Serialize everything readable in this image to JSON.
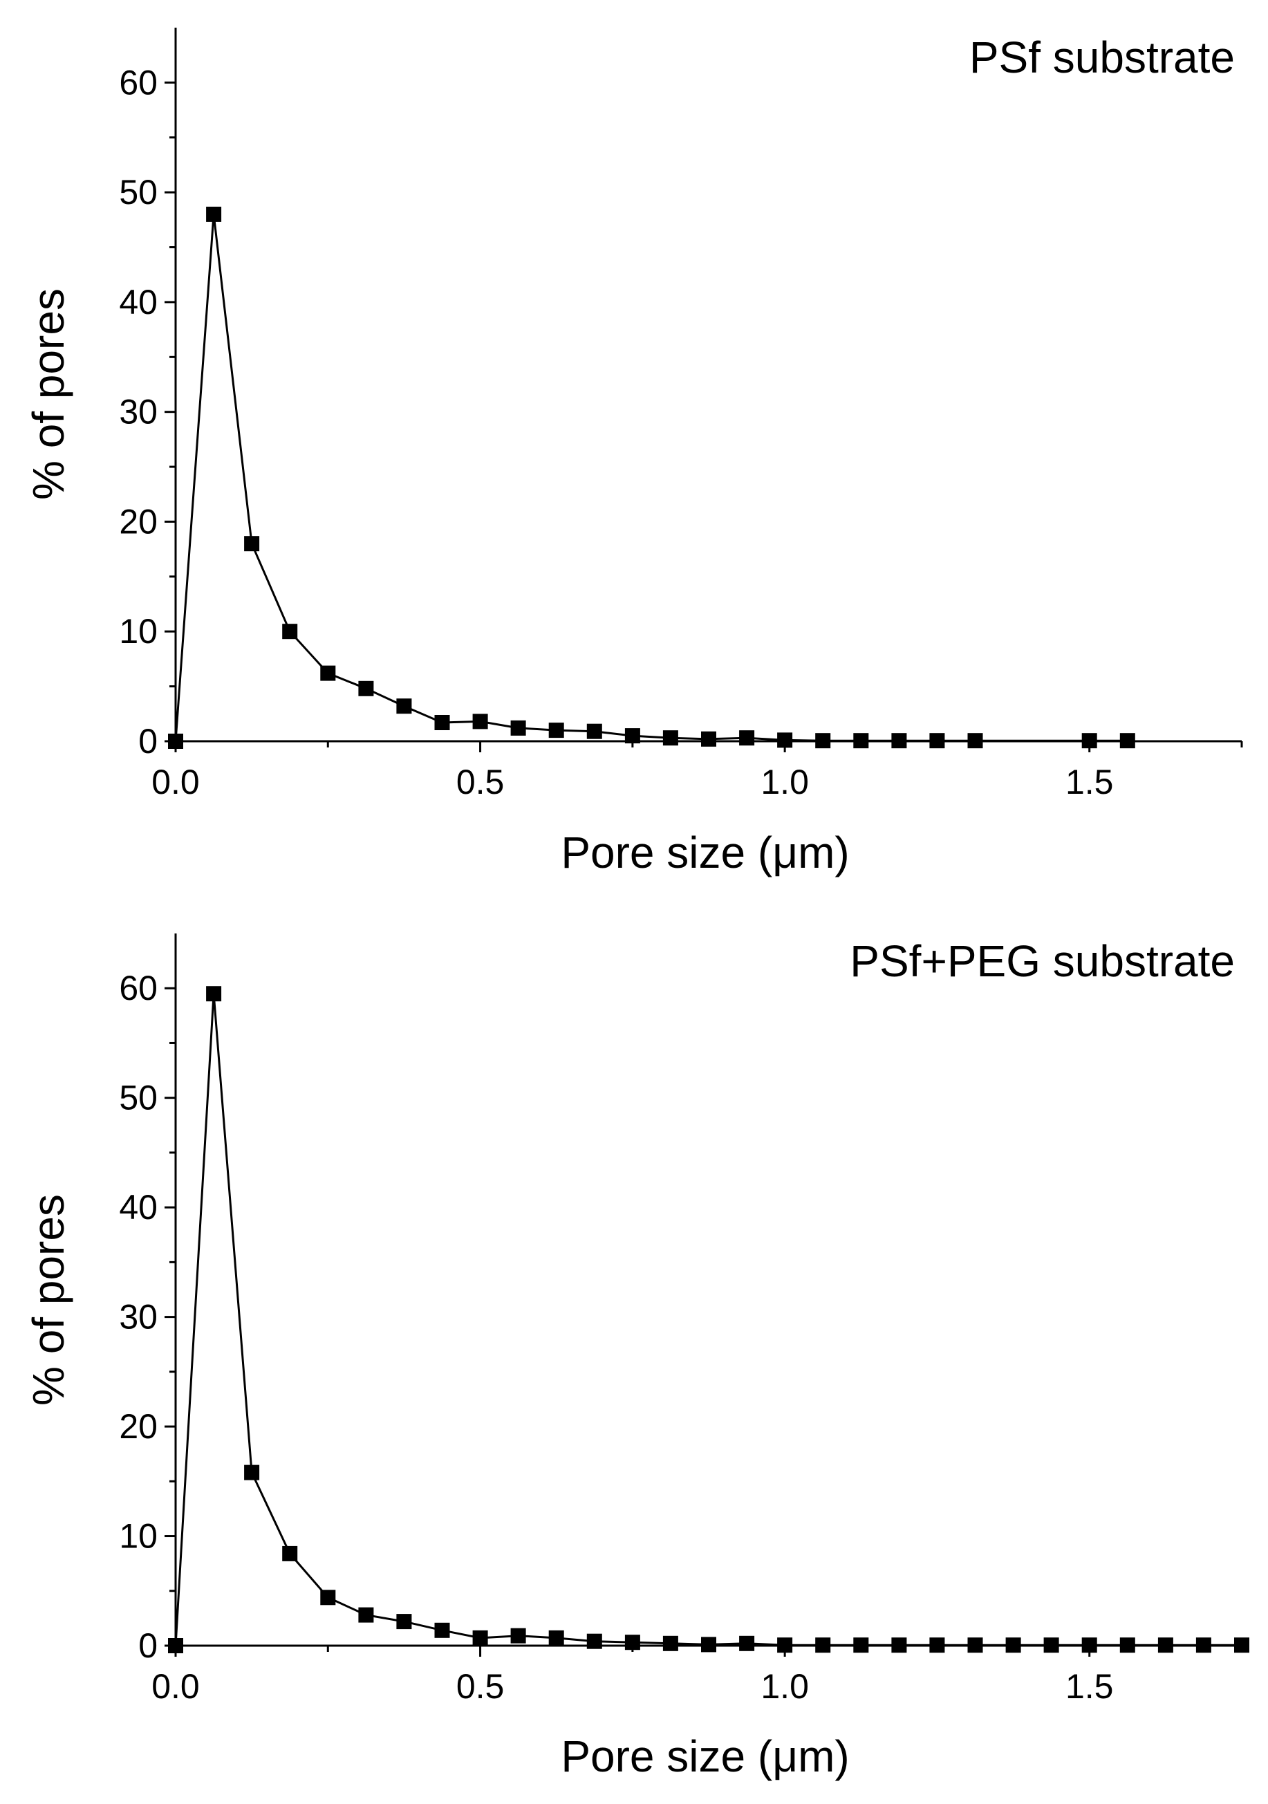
{
  "chart_data": [
    {
      "type": "line",
      "title": "",
      "annotation": "PSf substrate",
      "xlabel": "Pore size (μm)",
      "ylabel": "% of pores",
      "xlim": [
        0,
        1.75
      ],
      "ylim": [
        0,
        65
      ],
      "x_ticks": [
        0.0,
        0.5,
        1.0,
        1.5
      ],
      "x_tick_labels": [
        "0.0",
        "0.5",
        "1.0",
        "1.5"
      ],
      "y_ticks": [
        0,
        10,
        20,
        30,
        40,
        50,
        60
      ],
      "y_tick_labels": [
        "0",
        "10",
        "20",
        "30",
        "40",
        "50",
        "60"
      ],
      "marker": "square",
      "series": [
        {
          "name": "PSf substrate",
          "x": [
            0,
            0.0625,
            0.125,
            0.1875,
            0.25,
            0.3125,
            0.375,
            0.4375,
            0.5,
            0.5625,
            0.625,
            0.6875,
            0.75,
            0.8125,
            0.875,
            0.9375,
            1.0,
            1.0625,
            1.125,
            1.1875,
            1.25,
            1.3125,
            1.5,
            1.5625
          ],
          "values": [
            0,
            48,
            18,
            10,
            6.2,
            4.8,
            3.2,
            1.7,
            1.8,
            1.2,
            1.0,
            0.9,
            0.5,
            0.3,
            0.2,
            0.3,
            0.1,
            0.05,
            0.05,
            0.05,
            0.05,
            0.05,
            0.05,
            0.05
          ]
        }
      ]
    },
    {
      "type": "line",
      "title": "",
      "annotation": "PSf+PEG substrate",
      "xlabel": "Pore size (μm)",
      "ylabel": "% of pores",
      "xlim": [
        0,
        1.75
      ],
      "ylim": [
        0,
        65
      ],
      "x_ticks": [
        0.0,
        0.5,
        1.0,
        1.5
      ],
      "x_tick_labels": [
        "0.0",
        "0.5",
        "1.0",
        "1.5"
      ],
      "y_ticks": [
        0,
        10,
        20,
        30,
        40,
        50,
        60
      ],
      "y_tick_labels": [
        "0",
        "10",
        "20",
        "30",
        "40",
        "50",
        "60"
      ],
      "marker": "square",
      "series": [
        {
          "name": "PSf+PEG substrate",
          "x": [
            0,
            0.0625,
            0.125,
            0.1875,
            0.25,
            0.3125,
            0.375,
            0.4375,
            0.5,
            0.5625,
            0.625,
            0.6875,
            0.75,
            0.8125,
            0.875,
            0.9375,
            1.0,
            1.0625,
            1.125,
            1.1875,
            1.25,
            1.3125,
            1.375,
            1.4375,
            1.5,
            1.5625,
            1.625,
            1.6875,
            1.75
          ],
          "values": [
            0,
            59.5,
            15.8,
            8.4,
            4.4,
            2.8,
            2.2,
            1.4,
            0.7,
            0.9,
            0.7,
            0.4,
            0.3,
            0.2,
            0.1,
            0.2,
            0.05,
            0.05,
            0.05,
            0.05,
            0.05,
            0.05,
            0.05,
            0.05,
            0.05,
            0.05,
            0.05,
            0.05,
            0.05
          ]
        }
      ]
    }
  ]
}
